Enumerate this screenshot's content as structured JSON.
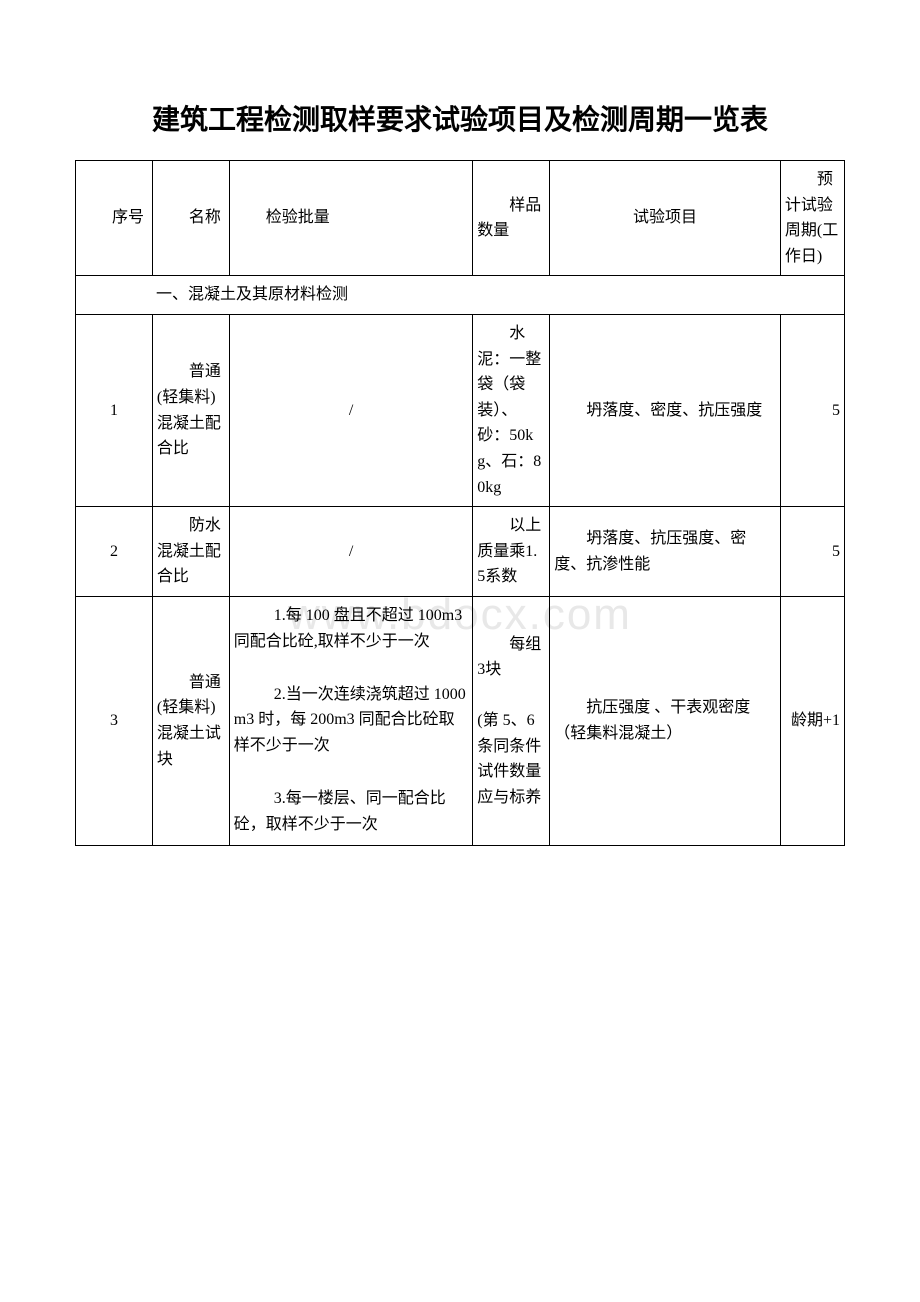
{
  "title": "建筑工程检测取样要求试验项目及检测周期一览表",
  "watermark": "www.bdocx.com",
  "headers": {
    "no": "序号",
    "name": "名称",
    "batch": "检验批量",
    "qty": "样品数量",
    "test": "试验项目",
    "period": "预计试验周期(工作日)"
  },
  "section1": "一、混凝土及其原材料检测",
  "row1": {
    "no": "1",
    "name": "普通(轻集料)混凝土配合比",
    "batch": "/",
    "qty": "水泥：一整袋（袋装）、砂：50kg、石：80kg",
    "test": "坍落度、密度、抗压强度",
    "period": "5"
  },
  "row2": {
    "no": "2",
    "name": "防水混凝土配合比",
    "batch": "/",
    "qty": "以上质量乘1.5系数",
    "test": "坍落度、抗压强度、密度、抗渗性能",
    "period": "5"
  },
  "row3": {
    "no": "3",
    "name": "普通(轻集料)混凝土试块",
    "batch1": "1.每 100 盘且不超过 100m3 同配合比砼,取样不少于一次",
    "batch2": "2.当一次连续浇筑超过 1000m3 时，每 200m3 同配合比砼取样不少于一次",
    "batch3": "3.每一楼层、同一配合比砼，取样不少于一次",
    "qty": "每组 3块\n\n(第 5、6条同条件试件数量应与标养",
    "test": "抗压强度 、干表观密度（轻集料混凝土）",
    "period": "龄期+1"
  }
}
